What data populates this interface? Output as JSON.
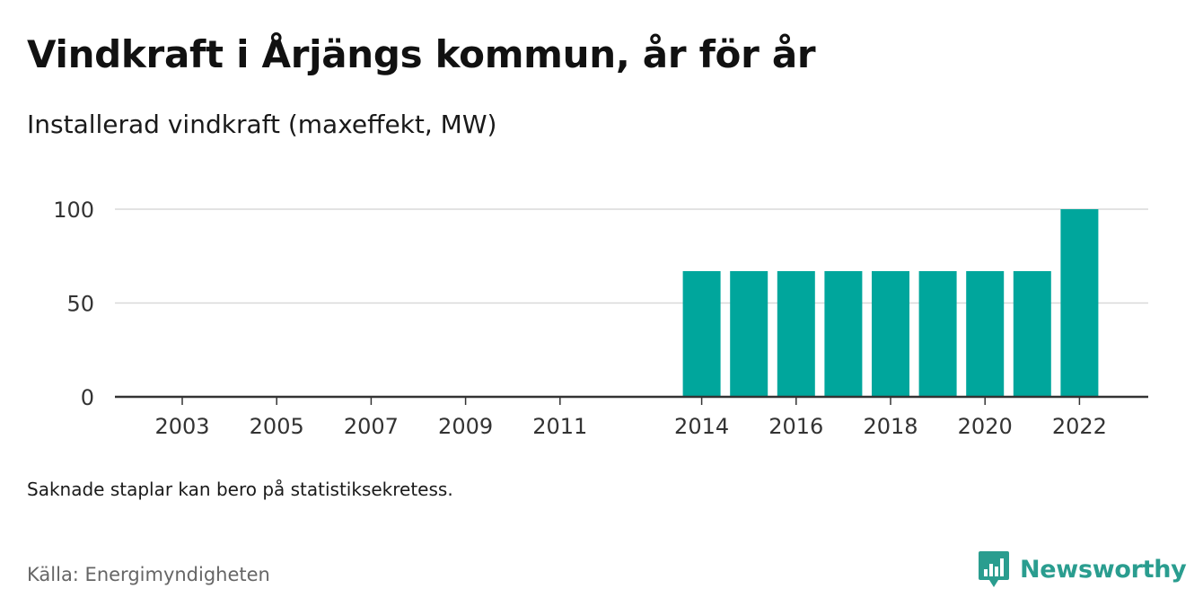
{
  "title": "Vindkraft i Årjängs kommun, år för år",
  "subtitle": "Installerad vindkraft (maxeffekt, MW)",
  "note": "Saknade staplar kan bero på statistiksekretess.",
  "source": "Källa: Energimyndigheten",
  "brand": {
    "name": "Newsworthy",
    "icon": "newsworthy-logo-icon",
    "color": "#2a9d8f"
  },
  "chart_data": {
    "type": "bar",
    "categories": [
      "2003",
      "2004",
      "2005",
      "2006",
      "2007",
      "2008",
      "2009",
      "2010",
      "2011",
      "2012",
      "2013",
      "2014",
      "2015",
      "2016",
      "2017",
      "2018",
      "2019",
      "2020",
      "2021",
      "2022"
    ],
    "values": [
      0,
      0,
      0,
      0,
      0,
      0,
      0,
      0,
      0,
      null,
      null,
      67,
      67,
      67,
      67,
      67,
      67,
      67,
      67,
      100
    ],
    "x_tick_labels": [
      "2003",
      "2005",
      "2007",
      "2009",
      "2011",
      "2014",
      "2016",
      "2018",
      "2020",
      "2022"
    ],
    "y_ticks": [
      0,
      50,
      100
    ],
    "ylim": [
      0,
      100
    ],
    "grid": true,
    "bar_color": "#00a69c"
  }
}
